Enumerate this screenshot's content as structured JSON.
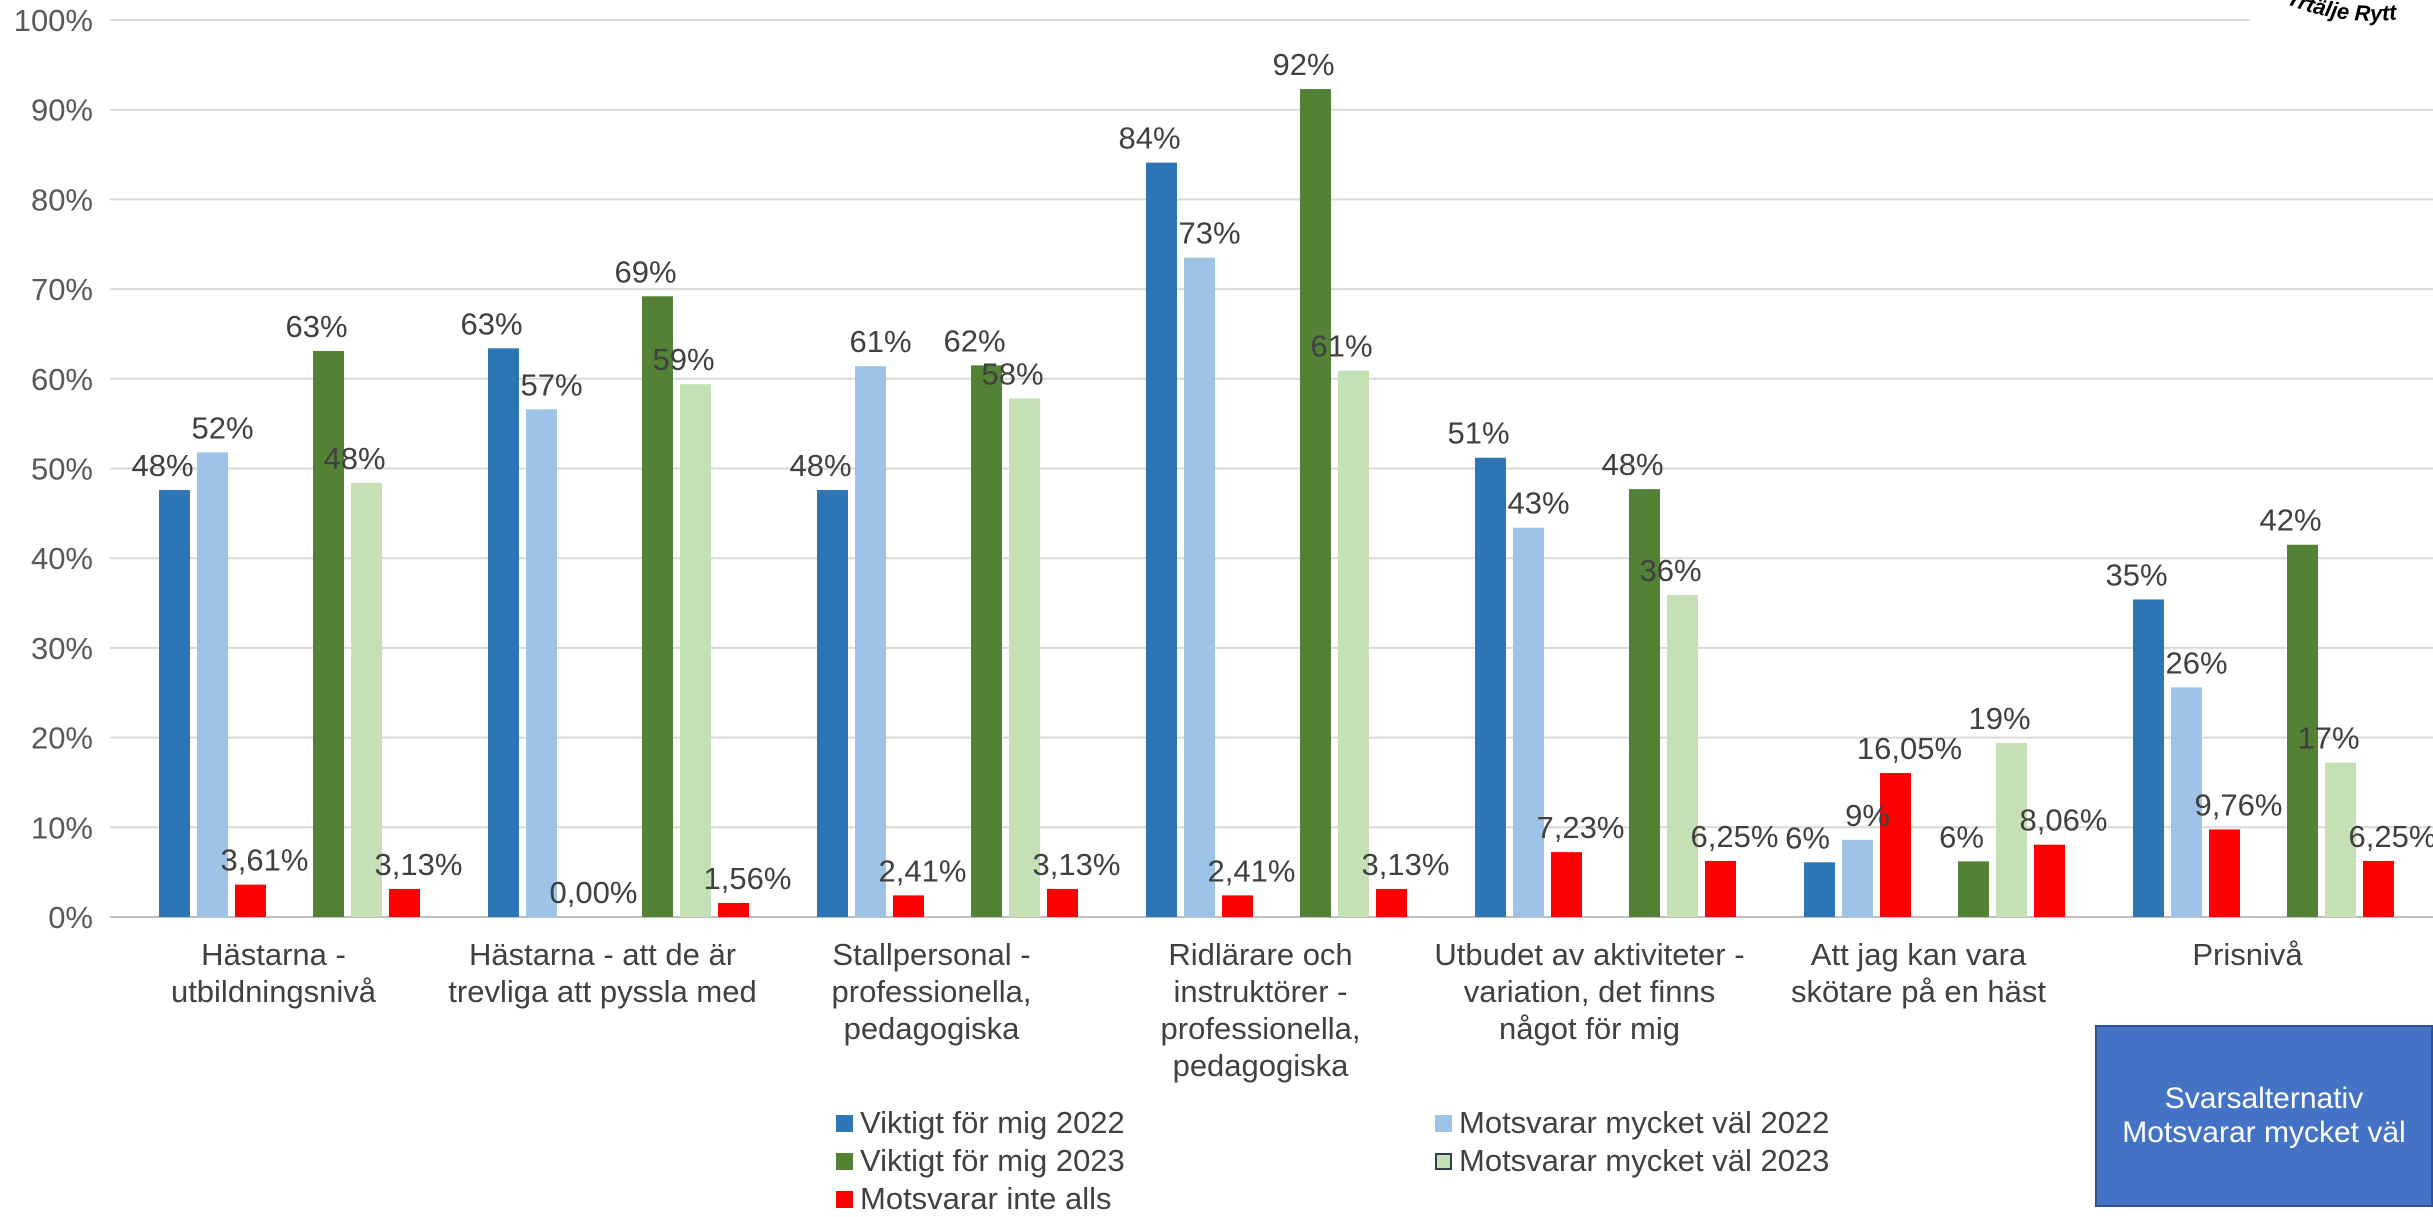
{
  "chart_data": {
    "type": "bar",
    "ylim": [
      0,
      100
    ],
    "y_ticks": [
      "0%",
      "10%",
      "20%",
      "30%",
      "40%",
      "50%",
      "60%",
      "70%",
      "80%",
      "90%",
      "100%"
    ],
    "grid": true,
    "legend_position": "bottom",
    "categories": [
      [
        "Hästarna -",
        "utbildningsnivå"
      ],
      [
        "Hästarna - att de är",
        "trevliga att pyssla med"
      ],
      [
        "Stallpersonal -",
        "professionella,",
        "pedagogiska"
      ],
      [
        "Ridlärare och",
        "instruktörer -",
        "professionella,",
        "pedagogiska"
      ],
      [
        "Utbudet av aktiviteter -",
        "variation, det finns",
        "något för mig"
      ],
      [
        "Att jag kan vara",
        "skötare på en häst"
      ],
      [
        "Prisnivå"
      ]
    ],
    "series": [
      {
        "name": "Viktigt för mig 2022",
        "color": "#2e75b6",
        "values": [
          47.6,
          63.4,
          47.6,
          84.1,
          51.2,
          6.1,
          35.4
        ],
        "labels": [
          "48%",
          "63%",
          "48%",
          "84%",
          "51%",
          "6%",
          "35%"
        ]
      },
      {
        "name": "Motsvarar mycket väl 2022",
        "color": "#9dc3e6",
        "values": [
          51.8,
          56.6,
          61.4,
          73.5,
          43.4,
          8.6,
          25.6
        ],
        "labels": [
          "52%",
          "57%",
          "61%",
          "73%",
          "43%",
          "9%",
          "26%"
        ]
      },
      {
        "name": "Motsvarar inte alls 2022",
        "color": "#ff0000",
        "values": [
          3.61,
          0.0,
          2.41,
          2.41,
          7.23,
          16.05,
          9.76
        ],
        "labels": [
          "3,61%",
          "0,00%",
          "2,41%",
          "2,41%",
          "7,23%",
          "16,05%",
          "9,76%"
        ]
      },
      {
        "name": "Viktigt för mig 2023",
        "color": "#538135",
        "values": [
          63.1,
          69.2,
          61.5,
          92.3,
          47.7,
          6.2,
          41.5
        ],
        "labels": [
          "63%",
          "69%",
          "62%",
          "92%",
          "48%",
          "6%",
          "42%"
        ]
      },
      {
        "name": "Motsvarar mycket väl 2023",
        "color": "#c5e0b4",
        "values": [
          48.4,
          59.4,
          57.8,
          60.9,
          35.9,
          19.4,
          17.2
        ],
        "labels": [
          "48%",
          "59%",
          "58%",
          "61%",
          "36%",
          "19%",
          "17%"
        ]
      },
      {
        "name": "Motsvarar inte alls 2023",
        "color": "#ff0000",
        "values": [
          3.13,
          1.56,
          3.13,
          3.13,
          6.25,
          8.06,
          6.25
        ],
        "labels": [
          "3,13%",
          "1,56%",
          "3,13%",
          "3,13%",
          "6,25%",
          "8,06%",
          "6,25%"
        ]
      }
    ]
  },
  "legend": {
    "items": [
      {
        "label": "Viktigt för mig 2022",
        "color": "#2e75b6"
      },
      {
        "label": "Motsvarar mycket väl 2022",
        "color": "#9dc3e6"
      },
      {
        "label": "Viktigt för mig 2023",
        "color": "#538135"
      },
      {
        "label": "Motsvarar mycket väl 2023",
        "color": "#c5e0b4"
      },
      {
        "label": "Motsvarar inte alls",
        "color": "#ff0000"
      }
    ]
  },
  "callout": {
    "line1": "Svarsalternativ",
    "line2": "Motsvarar mycket väl"
  },
  "logo": {
    "text": "rrtälje Rytt"
  }
}
